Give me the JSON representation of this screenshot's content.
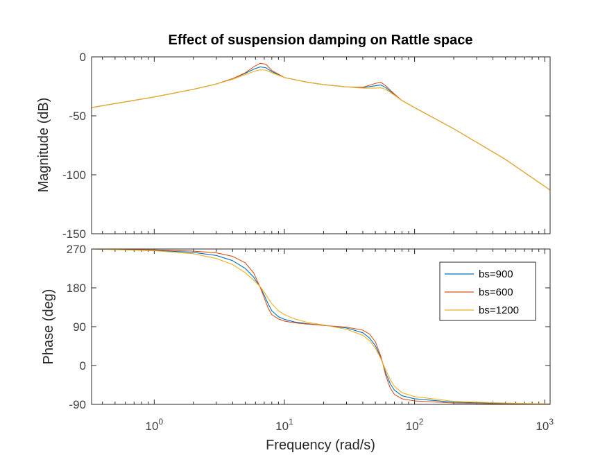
{
  "chart_data": {
    "type": "line",
    "title": "Effect of suspension damping on Rattle space",
    "xlabel": "Frequency  (rad/s)",
    "x_scale": "log",
    "xlim": [
      0.33,
      1100
    ],
    "x_ticks": [
      {
        "value": 1,
        "base": "10",
        "exp": "0"
      },
      {
        "value": 10,
        "base": "10",
        "exp": "1"
      },
      {
        "value": 100,
        "base": "10",
        "exp": "2"
      },
      {
        "value": 1000,
        "base": "10",
        "exp": "3"
      }
    ],
    "legend": {
      "position": "top-right",
      "entries": [
        "bs=900",
        "bs=600",
        "bs=1200"
      ]
    },
    "series_colors": [
      "#0072BD",
      "#D95319",
      "#EDB120"
    ],
    "panels": [
      {
        "name": "magnitude",
        "ylabel": "Magnitude (dB)",
        "ylim": [
          -150,
          0
        ],
        "y_ticks": [
          "0",
          "-50",
          "-100",
          "-150"
        ],
        "y_tick_values": [
          0,
          -50,
          -100,
          -150
        ],
        "series": [
          {
            "name": "bs=900",
            "x": [
              0.33,
              1,
              2,
              3,
              4,
              5,
              5.8,
              6.5,
              7.2,
              8,
              10,
              15,
              20,
              30,
              40,
              50,
              55,
              60,
              70,
              80,
              100,
              200,
              500,
              1100
            ],
            "y": [
              -43,
              -34,
              -27.5,
              -23,
              -18.5,
              -14,
              -10.5,
              -8.5,
              -9.2,
              -12.5,
              -17.5,
              -21.5,
              -23.5,
              -25.5,
              -26,
              -24.5,
              -23.8,
              -26,
              -32,
              -37,
              -43,
              -61,
              -87,
              -113
            ]
          },
          {
            "name": "bs=600",
            "x": [
              0.33,
              1,
              2,
              3,
              4,
              5,
              5.8,
              6.5,
              7.2,
              8,
              10,
              15,
              20,
              30,
              40,
              50,
              55,
              60,
              70,
              80,
              100,
              200,
              500,
              1100
            ],
            "y": [
              -43,
              -34,
              -27.5,
              -23,
              -18.5,
              -13.5,
              -8.5,
              -5.5,
              -6.2,
              -11.5,
              -17.5,
              -21.5,
              -23.5,
              -25.5,
              -25.8,
              -22.5,
              -21.5,
              -24.5,
              -31.5,
              -37,
              -43,
              -61,
              -87,
              -113
            ]
          },
          {
            "name": "bs=1200",
            "x": [
              0.33,
              1,
              2,
              3,
              4,
              5,
              5.8,
              6.5,
              7.2,
              8,
              10,
              15,
              20,
              30,
              40,
              50,
              55,
              60,
              70,
              80,
              100,
              200,
              500,
              1100
            ],
            "y": [
              -43,
              -34,
              -27.5,
              -23,
              -19,
              -15,
              -12.5,
              -11,
              -11.2,
              -13.5,
              -17.5,
              -21.5,
              -23.5,
              -25.5,
              -26.5,
              -26.5,
              -26.2,
              -27.5,
              -32.5,
              -37,
              -43,
              -61,
              -87,
              -113
            ]
          }
        ]
      },
      {
        "name": "phase",
        "ylabel": "Phase (deg)",
        "ylim": [
          -90,
          270
        ],
        "y_ticks": [
          "270",
          "180",
          "90",
          "0",
          "-90"
        ],
        "y_tick_values": [
          270,
          180,
          90,
          0,
          -90
        ],
        "series": [
          {
            "name": "bs=900",
            "x": [
              0.33,
              1,
              2,
              3,
              4,
              5,
              5.8,
              6.5,
              7,
              7.5,
              8,
              9,
              10,
              12,
              15,
              20,
              30,
              40,
              45,
              50,
              55,
              57,
              60,
              65,
              70,
              80,
              100,
              200,
              500,
              1100
            ],
            "y": [
              270,
              267,
              262,
              255,
              243,
              225,
              205,
              182,
              163,
              143,
              127,
              113,
              107,
              101,
              97,
              93,
              87,
              76,
              64,
              46,
              19,
              5,
              -17,
              -42,
              -57,
              -70,
              -77,
              -85,
              -88,
              -89
            ]
          },
          {
            "name": "bs=600",
            "x": [
              0.33,
              1,
              2,
              3,
              4,
              5,
              5.8,
              6.5,
              7,
              7.5,
              8,
              9,
              10,
              12,
              15,
              20,
              30,
              40,
              45,
              50,
              55,
              57,
              60,
              65,
              70,
              80,
              100,
              200,
              500,
              1100
            ],
            "y": [
              270,
              268,
              265,
              261,
              253,
              238,
              215,
              182,
              157,
              133,
              118,
              108,
              103,
              99,
              96,
              93,
              89,
              82,
              73,
              55,
              22,
              5,
              -23,
              -52,
              -67,
              -77,
              -82,
              -87,
              -89,
              -90
            ]
          },
          {
            "name": "bs=1200",
            "x": [
              0.33,
              1,
              2,
              3,
              4,
              5,
              5.8,
              6.5,
              7,
              7.5,
              8,
              9,
              10,
              12,
              15,
              20,
              30,
              40,
              45,
              50,
              55,
              57,
              60,
              65,
              70,
              80,
              100,
              200,
              500,
              1100
            ],
            "y": [
              270,
              266,
              259,
              248,
              234,
              215,
              198,
              183,
              170,
              156,
              143,
              127,
              118,
              108,
              100,
              94,
              84,
              70,
              58,
              40,
              16,
              5,
              -10,
              -33,
              -48,
              -63,
              -72,
              -83,
              -87,
              -89
            ]
          }
        ]
      }
    ]
  }
}
